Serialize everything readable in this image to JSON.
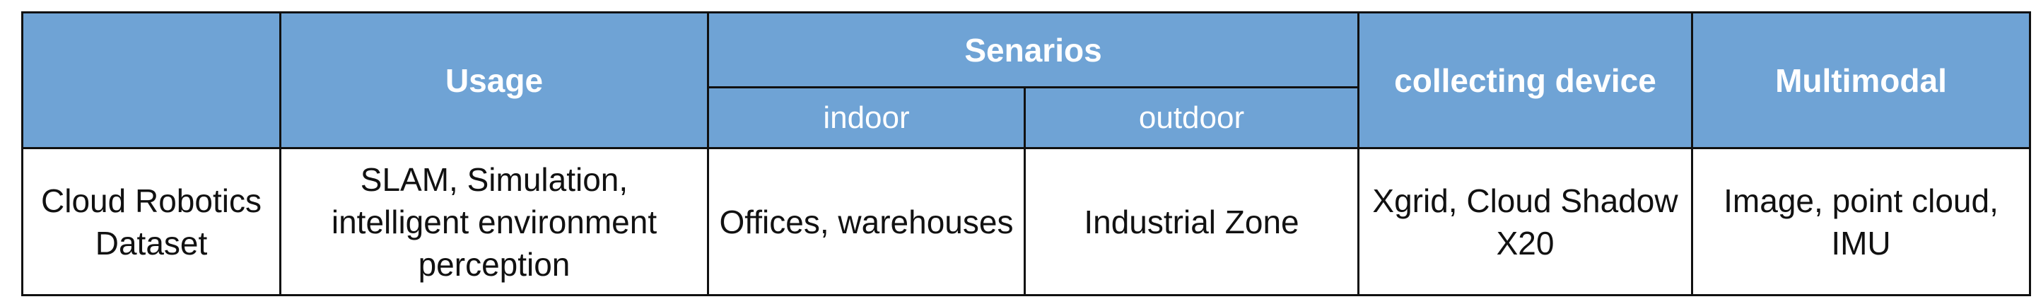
{
  "table": {
    "headers": {
      "blank": "",
      "usage": "Usage",
      "scenarios": "Senarios",
      "indoor": "indoor",
      "outdoor": "outdoor",
      "device": "collecting device",
      "multimodal": "Multimodal"
    },
    "colors": {
      "header_bg": "#6fa3d5",
      "header_text": "#ffffff",
      "border": "#111111"
    },
    "rows": [
      {
        "dataset": "Cloud Robotics Dataset",
        "usage": "SLAM, Simulation, intelligent environment perception",
        "indoor": "Offices, warehouses",
        "outdoor": "Industrial Zone",
        "device": "Xgrid, Cloud Shadow X20",
        "multimodal": "Image, point cloud, IMU"
      }
    ]
  }
}
